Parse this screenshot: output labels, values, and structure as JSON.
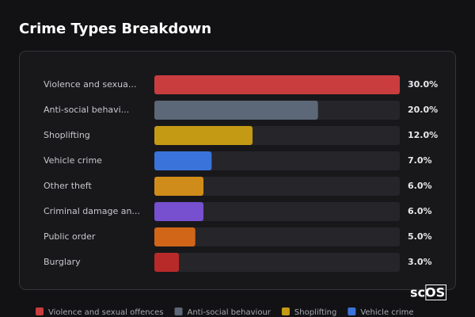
{
  "chart_data": {
    "type": "bar",
    "orientation": "horizontal",
    "title": "Crime Types Breakdown",
    "categories": [
      "Violence and sexua...",
      "Anti-social behavi...",
      "Shoplifting",
      "Vehicle crime",
      "Other theft",
      "Criminal damage an...",
      "Public order",
      "Burglary"
    ],
    "values": [
      30,
      20,
      12,
      7,
      6,
      6,
      5,
      3
    ],
    "value_labels": [
      "30.0%",
      "20.0%",
      "12.0%",
      "7.0%",
      "6.0%",
      "6.0%",
      "5.0%",
      "3.0%"
    ],
    "colors": [
      "#c93d3f",
      "#5c6777",
      "#c49a14",
      "#3a73d9",
      "#d08c1a",
      "#7650cf",
      "#d16619",
      "#b82a2a"
    ],
    "xlim": [
      0,
      30
    ],
    "legend": [
      "Violence and sexual offences",
      "Anti-social behaviour",
      "Shoplifting",
      "Vehicle crime"
    ]
  },
  "watermark": "scOS"
}
